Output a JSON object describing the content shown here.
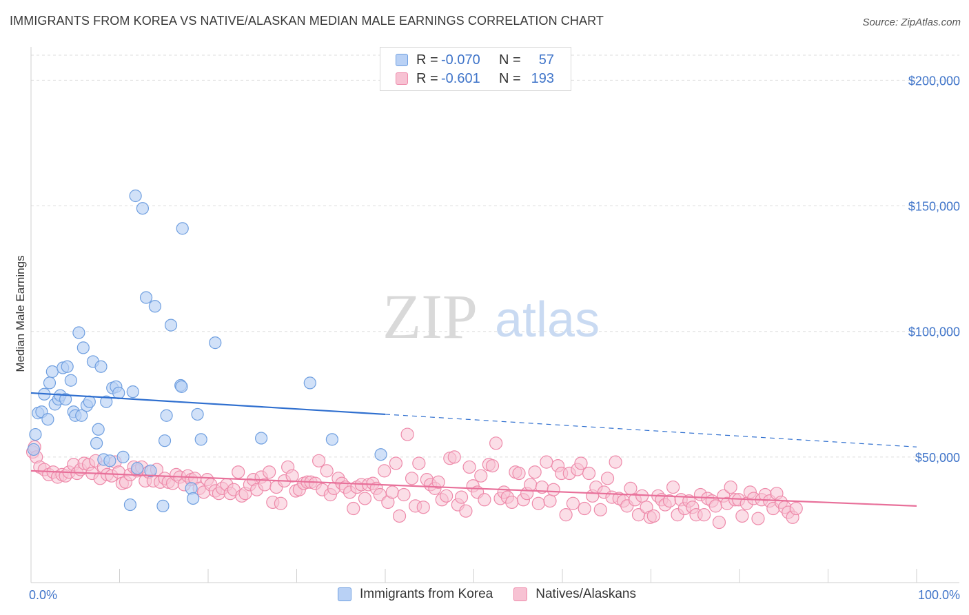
{
  "title": "IMMIGRANTS FROM KOREA VS NATIVE/ALASKAN MEDIAN MALE EARNINGS CORRELATION CHART",
  "source": "Source: ZipAtlas.com",
  "watermark": {
    "zip": "ZIP",
    "atlas": "atlas"
  },
  "colors": {
    "blue": "#6f9fe0",
    "blue_fill": "#b9d1f5",
    "blue_line": "#2f6fcf",
    "pink": "#ee8aaa",
    "pink_fill": "#f7c2d3",
    "pink_line": "#e8709a",
    "axis_text": "#3f74c9",
    "grid": "#dedede"
  },
  "legend": {
    "series": [
      {
        "r_label": "R =",
        "r_value": "-0.070",
        "n_label": "N =",
        "n_value": "57"
      },
      {
        "r_label": "R =",
        "r_value": "-0.601",
        "n_label": "N =",
        "n_value": "193"
      }
    ]
  },
  "chart_data": {
    "type": "scatter",
    "title": "IMMIGRANTS FROM KOREA VS NATIVE/ALASKAN MEDIAN MALE EARNINGS CORRELATION CHART",
    "xlabel": "",
    "ylabel": "Median Male Earnings",
    "xlim": [
      0,
      100
    ],
    "ylim": [
      0,
      210000
    ],
    "x_tick_labels": [
      "0.0%",
      "100.0%"
    ],
    "y_ticks": [
      50000,
      100000,
      150000,
      200000
    ],
    "y_tick_labels": [
      "$50,000",
      "$100,000",
      "$150,000",
      "$200,000"
    ],
    "legend_position": "bottom-center",
    "series": [
      {
        "name": "Immigrants from Korea",
        "r": -0.07,
        "n": 57,
        "trend": {
          "x0": 0,
          "y0": 75500,
          "x1": 40,
          "y1": 67000,
          "dashed_to_x": 100,
          "dashed_to_y": 54000
        },
        "points": [
          [
            0.3,
            53000
          ],
          [
            0.5,
            59000
          ],
          [
            0.8,
            67500
          ],
          [
            1.2,
            68000
          ],
          [
            1.5,
            75000
          ],
          [
            1.9,
            65000
          ],
          [
            2.1,
            79500
          ],
          [
            2.4,
            84000
          ],
          [
            2.7,
            71000
          ],
          [
            3.1,
            73000
          ],
          [
            3.3,
            74500
          ],
          [
            3.6,
            85500
          ],
          [
            3.9,
            73000
          ],
          [
            4.1,
            86000
          ],
          [
            4.5,
            80500
          ],
          [
            4.8,
            68000
          ],
          [
            5.0,
            66500
          ],
          [
            5.4,
            99500
          ],
          [
            5.7,
            66500
          ],
          [
            5.9,
            93500
          ],
          [
            6.3,
            70500
          ],
          [
            6.6,
            72000
          ],
          [
            7.0,
            88000
          ],
          [
            7.4,
            55500
          ],
          [
            7.6,
            61000
          ],
          [
            7.9,
            86000
          ],
          [
            8.2,
            49000
          ],
          [
            8.5,
            72000
          ],
          [
            8.9,
            48500
          ],
          [
            9.2,
            77500
          ],
          [
            9.6,
            78000
          ],
          [
            9.9,
            75500
          ],
          [
            10.4,
            50000
          ],
          [
            11.2,
            31000
          ],
          [
            11.5,
            76000
          ],
          [
            11.8,
            154000
          ],
          [
            12.0,
            45500
          ],
          [
            12.6,
            149000
          ],
          [
            13.0,
            113500
          ],
          [
            13.5,
            44500
          ],
          [
            14.0,
            110000
          ],
          [
            14.9,
            30500
          ],
          [
            15.1,
            56500
          ],
          [
            15.3,
            66500
          ],
          [
            15.8,
            102500
          ],
          [
            16.9,
            78500
          ],
          [
            17.0,
            78000
          ],
          [
            17.1,
            141000
          ],
          [
            18.1,
            37500
          ],
          [
            18.3,
            33500
          ],
          [
            18.8,
            67000
          ],
          [
            19.2,
            57000
          ],
          [
            20.8,
            95500
          ],
          [
            26.0,
            57500
          ],
          [
            31.5,
            79500
          ],
          [
            34.0,
            57000
          ],
          [
            39.5,
            51000
          ]
        ]
      },
      {
        "name": "Natives/Alaskans",
        "r": -0.601,
        "n": 193,
        "trend": {
          "x0": 0,
          "y0": 44500,
          "x1": 100,
          "y1": 30500
        },
        "points": [
          [
            0.2,
            52000
          ],
          [
            0.4,
            54000
          ],
          [
            0.6,
            50000
          ],
          [
            1.0,
            46000
          ],
          [
            1.5,
            45000
          ],
          [
            2.0,
            43000
          ],
          [
            2.5,
            44000
          ],
          [
            3.0,
            42000
          ],
          [
            3.5,
            43000
          ],
          [
            3.9,
            42500
          ],
          [
            4.3,
            44000
          ],
          [
            4.8,
            47000
          ],
          [
            5.2,
            43500
          ],
          [
            5.6,
            45000
          ],
          [
            6.0,
            47500
          ],
          [
            6.5,
            47000
          ],
          [
            6.9,
            43500
          ],
          [
            7.3,
            48500
          ],
          [
            7.8,
            41500
          ],
          [
            8.2,
            46000
          ],
          [
            8.6,
            43000
          ],
          [
            9.1,
            42500
          ],
          [
            9.5,
            48000
          ],
          [
            9.9,
            44000
          ],
          [
            10.3,
            39500
          ],
          [
            10.7,
            40000
          ],
          [
            11.2,
            43000
          ],
          [
            11.6,
            46000
          ],
          [
            12.0,
            44500
          ],
          [
            12.5,
            46000
          ],
          [
            12.9,
            40500
          ],
          [
            13.3,
            44000
          ],
          [
            13.8,
            40500
          ],
          [
            14.2,
            45000
          ],
          [
            14.6,
            40000
          ],
          [
            15.1,
            41500
          ],
          [
            15.5,
            40000
          ],
          [
            16.0,
            39500
          ],
          [
            16.4,
            43000
          ],
          [
            16.8,
            42000
          ],
          [
            17.3,
            39000
          ],
          [
            17.7,
            42500
          ],
          [
            18.1,
            41000
          ],
          [
            18.5,
            41500
          ],
          [
            19.0,
            37500
          ],
          [
            19.5,
            36000
          ],
          [
            19.9,
            41000
          ],
          [
            20.3,
            39000
          ],
          [
            20.8,
            36500
          ],
          [
            21.2,
            35500
          ],
          [
            21.6,
            37500
          ],
          [
            22.1,
            39000
          ],
          [
            22.5,
            35500
          ],
          [
            22.9,
            37000
          ],
          [
            23.4,
            44000
          ],
          [
            23.8,
            34500
          ],
          [
            24.2,
            35500
          ],
          [
            24.7,
            39000
          ],
          [
            25.1,
            41000
          ],
          [
            25.5,
            37000
          ],
          [
            26.0,
            42000
          ],
          [
            26.4,
            39000
          ],
          [
            26.9,
            44000
          ],
          [
            27.3,
            32000
          ],
          [
            27.7,
            38000
          ],
          [
            28.2,
            31500
          ],
          [
            28.6,
            40500
          ],
          [
            29.0,
            46000
          ],
          [
            29.5,
            42500
          ],
          [
            29.9,
            36500
          ],
          [
            30.3,
            37000
          ],
          [
            30.8,
            39500
          ],
          [
            31.2,
            40000
          ],
          [
            31.6,
            40000
          ],
          [
            32.1,
            39500
          ],
          [
            32.5,
            48500
          ],
          [
            32.9,
            37000
          ],
          [
            33.4,
            44500
          ],
          [
            33.8,
            35000
          ],
          [
            34.2,
            37500
          ],
          [
            34.7,
            41500
          ],
          [
            35.1,
            39500
          ],
          [
            35.5,
            38000
          ],
          [
            36.0,
            36000
          ],
          [
            36.4,
            29500
          ],
          [
            36.8,
            38000
          ],
          [
            37.3,
            39000
          ],
          [
            37.7,
            33500
          ],
          [
            38.1,
            39000
          ],
          [
            38.6,
            39500
          ],
          [
            39.0,
            37500
          ],
          [
            39.4,
            35000
          ],
          [
            39.9,
            44500
          ],
          [
            40.3,
            32000
          ],
          [
            40.8,
            36000
          ],
          [
            41.2,
            47500
          ],
          [
            41.6,
            26500
          ],
          [
            42.1,
            35000
          ],
          [
            42.5,
            59000
          ],
          [
            43.0,
            41500
          ],
          [
            43.4,
            30500
          ],
          [
            43.8,
            47500
          ],
          [
            44.3,
            30000
          ],
          [
            44.7,
            41000
          ],
          [
            45.1,
            39000
          ],
          [
            45.6,
            37500
          ],
          [
            46.0,
            40000
          ],
          [
            46.4,
            33000
          ],
          [
            46.9,
            34500
          ],
          [
            47.3,
            49500
          ],
          [
            47.8,
            50000
          ],
          [
            48.2,
            31000
          ],
          [
            48.6,
            34000
          ],
          [
            49.1,
            28500
          ],
          [
            49.5,
            46000
          ],
          [
            49.9,
            38500
          ],
          [
            50.4,
            36000
          ],
          [
            50.8,
            42500
          ],
          [
            51.2,
            33000
          ],
          [
            51.7,
            47000
          ],
          [
            52.1,
            46500
          ],
          [
            52.5,
            55500
          ],
          [
            53.0,
            33500
          ],
          [
            53.4,
            36000
          ],
          [
            53.8,
            34000
          ],
          [
            54.3,
            32000
          ],
          [
            54.7,
            44000
          ],
          [
            55.1,
            43500
          ],
          [
            55.6,
            33000
          ],
          [
            56.0,
            35500
          ],
          [
            56.4,
            39000
          ],
          [
            56.9,
            44000
          ],
          [
            57.3,
            31500
          ],
          [
            57.7,
            38000
          ],
          [
            58.2,
            48000
          ],
          [
            58.6,
            32500
          ],
          [
            59.0,
            37000
          ],
          [
            59.5,
            46500
          ],
          [
            59.9,
            43500
          ],
          [
            60.4,
            27000
          ],
          [
            60.8,
            43500
          ],
          [
            61.2,
            31500
          ],
          [
            61.7,
            45000
          ],
          [
            62.1,
            47500
          ],
          [
            62.5,
            29500
          ],
          [
            63.0,
            43500
          ],
          [
            63.4,
            34500
          ],
          [
            63.8,
            38000
          ],
          [
            64.3,
            29000
          ],
          [
            64.7,
            36000
          ],
          [
            65.1,
            41500
          ],
          [
            65.6,
            34000
          ],
          [
            66.0,
            48000
          ],
          [
            66.4,
            33500
          ],
          [
            66.9,
            32500
          ],
          [
            67.3,
            30500
          ],
          [
            67.7,
            37500
          ],
          [
            68.2,
            33000
          ],
          [
            68.6,
            27000
          ],
          [
            69.0,
            34500
          ],
          [
            69.5,
            30000
          ],
          [
            69.9,
            26000
          ],
          [
            70.3,
            26500
          ],
          [
            70.8,
            34500
          ],
          [
            71.2,
            33000
          ],
          [
            71.6,
            31000
          ],
          [
            72.1,
            32500
          ],
          [
            72.5,
            38000
          ],
          [
            73.0,
            27000
          ],
          [
            73.4,
            33000
          ],
          [
            73.8,
            29500
          ],
          [
            74.3,
            32500
          ],
          [
            74.7,
            30000
          ],
          [
            75.1,
            27000
          ],
          [
            75.6,
            35000
          ],
          [
            76.0,
            27000
          ],
          [
            76.4,
            33500
          ],
          [
            76.9,
            32500
          ],
          [
            77.3,
            30500
          ],
          [
            77.7,
            24000
          ],
          [
            78.2,
            34500
          ],
          [
            78.6,
            31500
          ],
          [
            79.0,
            38000
          ],
          [
            79.5,
            33000
          ],
          [
            79.9,
            33000
          ],
          [
            80.3,
            26500
          ],
          [
            80.8,
            31500
          ],
          [
            81.2,
            36000
          ],
          [
            81.6,
            33500
          ],
          [
            82.1,
            25500
          ],
          [
            82.5,
            33000
          ],
          [
            82.9,
            35000
          ],
          [
            83.4,
            32500
          ],
          [
            83.8,
            29500
          ],
          [
            84.2,
            35500
          ],
          [
            84.7,
            32000
          ],
          [
            85.1,
            30000
          ],
          [
            85.5,
            28000
          ],
          [
            86.0,
            26000
          ],
          [
            86.4,
            29500
          ]
        ]
      }
    ]
  },
  "bottom_legend": [
    {
      "label": "Immigrants from Korea"
    },
    {
      "label": "Natives/Alaskans"
    }
  ]
}
